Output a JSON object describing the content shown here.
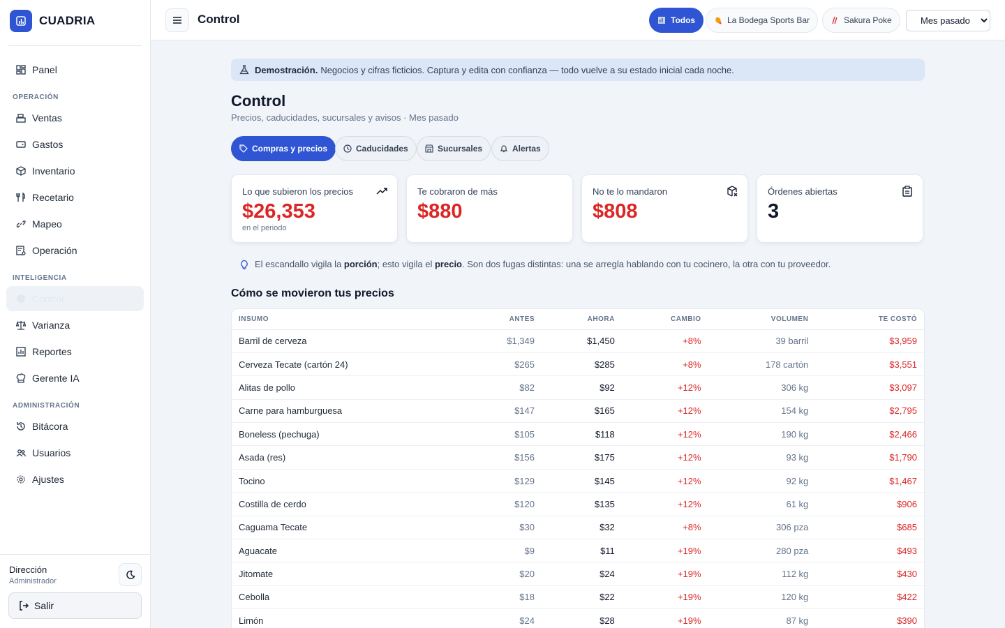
{
  "brand": {
    "name": "CUADRIA"
  },
  "sidebar": {
    "panel": "Panel",
    "section_operacion": "OPERACIÓN",
    "operacion": [
      "Ventas",
      "Gastos",
      "Inventario",
      "Recetario",
      "Mapeo",
      "Operación"
    ],
    "section_inteligencia": "INTELIGENCIA",
    "inteligencia": [
      "Control",
      "Varianza",
      "Reportes",
      "Gerente IA"
    ],
    "section_administracion": "ADMINISTRACIÓN",
    "administracion": [
      "Bitácora",
      "Usuarios",
      "Ajustes"
    ],
    "user_name": "Dirección",
    "user_role": "Administrador",
    "logout": "Salir"
  },
  "topbar": {
    "title": "Control",
    "chips": [
      "Todos",
      "La Bodega Sports Bar",
      "Sakura Poke"
    ],
    "period": "Mes pasado"
  },
  "banner": {
    "bold": "Demostración.",
    "text": "Negocios y cifras ficticios. Captura y edita con confianza — todo vuelve a su estado inicial cada noche."
  },
  "page": {
    "title": "Control",
    "subtitle": "Precios, caducidades, sucursales y avisos · Mes pasado"
  },
  "tabs": [
    "Compras y precios",
    "Caducidades",
    "Sucursales",
    "Alertas"
  ],
  "cards": [
    {
      "label": "Lo que subieron los precios",
      "value": "$26,353",
      "note": "en el periodo"
    },
    {
      "label": "Te cobraron de más",
      "value": "$880"
    },
    {
      "label": "No te lo mandaron",
      "value": "$808"
    },
    {
      "label": "Órdenes abiertas",
      "value": "3"
    }
  ],
  "tip": {
    "t1": "El escandallo vigila la",
    "b1": "porción",
    "t2": "; esto vigila el",
    "b2": "precio",
    "t3": ". Son dos fugas distintas: una se arregla hablando con tu cocinero, la otra con tu proveedor."
  },
  "section_title": "Cómo se movieron tus precios",
  "table": {
    "headers": [
      "INSUMO",
      "ANTES",
      "AHORA",
      "CAMBIO",
      "VOLUMEN",
      "TE COSTÓ"
    ],
    "rows": [
      [
        "Barril de cerveza",
        "$1,349",
        "$1,450",
        "+8%",
        "39 barril",
        "$3,959"
      ],
      [
        "Cerveza Tecate (cartón 24)",
        "$265",
        "$285",
        "+8%",
        "178 cartón",
        "$3,551"
      ],
      [
        "Alitas de pollo",
        "$82",
        "$92",
        "+12%",
        "306 kg",
        "$3,097"
      ],
      [
        "Carne para hamburguesa",
        "$147",
        "$165",
        "+12%",
        "154 kg",
        "$2,795"
      ],
      [
        "Boneless (pechuga)",
        "$105",
        "$118",
        "+12%",
        "190 kg",
        "$2,466"
      ],
      [
        "Asada (res)",
        "$156",
        "$175",
        "+12%",
        "93 kg",
        "$1,790"
      ],
      [
        "Tocino",
        "$129",
        "$145",
        "+12%",
        "92 kg",
        "$1,467"
      ],
      [
        "Costilla de cerdo",
        "$120",
        "$135",
        "+12%",
        "61 kg",
        "$906"
      ],
      [
        "Caguama Tecate",
        "$30",
        "$32",
        "+8%",
        "306 pza",
        "$685"
      ],
      [
        "Aguacate",
        "$9",
        "$11",
        "+19%",
        "280 pza",
        "$493"
      ],
      [
        "Jitomate",
        "$20",
        "$24",
        "+19%",
        "112 kg",
        "$430"
      ],
      [
        "Cebolla",
        "$18",
        "$22",
        "+19%",
        "120 kg",
        "$422"
      ],
      [
        "Limón",
        "$24",
        "$28",
        "+19%",
        "87 kg",
        "$390"
      ],
      [
        "",
        "",
        "",
        "",
        "",
        ""
      ]
    ]
  },
  "colors": {
    "accent": "#2f55d4",
    "negative": "#dc2626",
    "banner": "#dbe6f7"
  }
}
